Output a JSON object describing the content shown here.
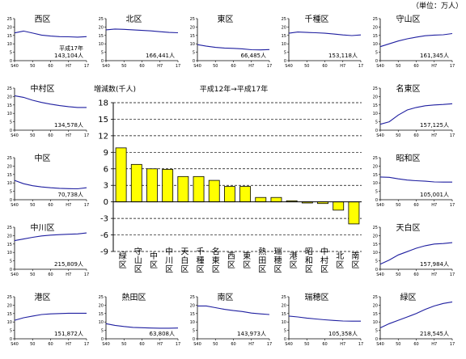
{
  "unit_label": "（単位：万人）",
  "main": {
    "title": "平成12年→平成17年",
    "ylabel": "増減数(千人)",
    "bar_color": "#ffff00",
    "bar_stroke": "#000000",
    "grid_style": "dashed"
  },
  "mini_axis": {
    "yticks": [
      "25",
      "20",
      "15",
      "10",
      "5",
      "0"
    ],
    "xticks": [
      "S40",
      "50",
      "60",
      "H7",
      "17"
    ]
  },
  "chart_data": [
    {
      "type": "bar",
      "title": "平成12年→平成17年",
      "ylabel": "増減数(千人)",
      "categories": [
        "緑区",
        "守山区",
        "中区",
        "中川区",
        "天白区",
        "千種区",
        "名東区",
        "西区",
        "東区",
        "熱田区",
        "瑞穂区",
        "港区",
        "昭和区",
        "中村区",
        "北区",
        "南区"
      ],
      "values": [
        9.8,
        6.8,
        6.0,
        5.9,
        4.6,
        4.6,
        3.9,
        2.8,
        2.8,
        0.8,
        0.8,
        0.2,
        -0.2,
        -0.3,
        -1.5,
        -4.0
      ],
      "ylim": [
        -9,
        18
      ],
      "yticks": [
        -9,
        -6,
        -3,
        0,
        3,
        6,
        9,
        12,
        15,
        18
      ],
      "grid": true
    },
    {
      "type": "line",
      "title": "西区",
      "annotation_top": "平成17年",
      "annotation": "143,104人",
      "x": [
        "S40",
        "S45",
        "S50",
        "S55",
        "S60",
        "H2",
        "H7",
        "H12",
        "H17"
      ],
      "values": [
        16.5,
        17.6,
        16.4,
        15.2,
        14.6,
        14.3,
        14.2,
        14.0,
        14.3
      ],
      "ylim": [
        0,
        25
      ]
    },
    {
      "type": "line",
      "title": "北区",
      "annotation": "166,441人",
      "x": [
        "S40",
        "S45",
        "S50",
        "S55",
        "S60",
        "H2",
        "H7",
        "H12",
        "H17"
      ],
      "values": [
        18.3,
        18.8,
        18.6,
        18.3,
        18.0,
        17.7,
        17.2,
        16.8,
        16.6
      ],
      "ylim": [
        0,
        25
      ]
    },
    {
      "type": "line",
      "title": "東区",
      "annotation": "66,485人",
      "x": [
        "S40",
        "S45",
        "S50",
        "S55",
        "S60",
        "H2",
        "H7",
        "H12",
        "H17"
      ],
      "values": [
        9.5,
        8.6,
        7.9,
        7.5,
        7.3,
        7.0,
        6.5,
        6.4,
        6.6
      ],
      "ylim": [
        0,
        25
      ]
    },
    {
      "type": "line",
      "title": "千種区",
      "annotation": "153,118人",
      "x": [
        "S40",
        "S45",
        "S50",
        "S55",
        "S60",
        "H2",
        "H7",
        "H12",
        "H17"
      ],
      "values": [
        16.3,
        17.0,
        16.8,
        16.6,
        16.3,
        15.8,
        15.3,
        14.9,
        15.3
      ],
      "ylim": [
        0,
        25
      ]
    },
    {
      "type": "line",
      "title": "守山区",
      "annotation": "161,345人",
      "x": [
        "S40",
        "S45",
        "S50",
        "S55",
        "S60",
        "H2",
        "H7",
        "H12",
        "H17"
      ],
      "values": [
        8.3,
        10.0,
        11.7,
        13.0,
        14.0,
        14.8,
        15.2,
        15.4,
        16.1
      ],
      "ylim": [
        0,
        25
      ]
    },
    {
      "type": "line",
      "title": "中村区",
      "annotation": "134,578人",
      "x": [
        "S40",
        "S45",
        "S50",
        "S55",
        "S60",
        "H2",
        "H7",
        "H12",
        "H17"
      ],
      "values": [
        20.5,
        19.5,
        17.8,
        16.5,
        15.5,
        14.6,
        14.0,
        13.5,
        13.5
      ],
      "ylim": [
        0,
        25
      ]
    },
    {
      "type": "line",
      "title": "名東区",
      "annotation": "157,125人",
      "x": [
        "S40",
        "S45",
        "S50",
        "S55",
        "S60",
        "H2",
        "H7",
        "H12",
        "H17"
      ],
      "values": [
        3.5,
        5.0,
        9.0,
        12.0,
        13.5,
        14.5,
        15.0,
        15.3,
        15.7
      ],
      "ylim": [
        0,
        25
      ]
    },
    {
      "type": "line",
      "title": "中区",
      "annotation": "70,738人",
      "x": [
        "S40",
        "S45",
        "S50",
        "S55",
        "S60",
        "H2",
        "H7",
        "H12",
        "H17"
      ],
      "values": [
        11.5,
        9.5,
        8.3,
        7.6,
        7.1,
        6.8,
        6.6,
        6.5,
        7.1
      ],
      "ylim": [
        0,
        25
      ]
    },
    {
      "type": "line",
      "title": "昭和区",
      "annotation": "105,001人",
      "x": [
        "S40",
        "S45",
        "S50",
        "S55",
        "S60",
        "H2",
        "H7",
        "H12",
        "H17"
      ],
      "values": [
        13.5,
        13.3,
        12.4,
        11.7,
        11.3,
        11.0,
        10.6,
        10.5,
        10.5
      ],
      "ylim": [
        0,
        25
      ]
    },
    {
      "type": "line",
      "title": "中川区",
      "annotation": "215,809人",
      "x": [
        "S40",
        "S45",
        "S50",
        "S55",
        "S60",
        "H2",
        "H7",
        "H12",
        "H17"
      ],
      "values": [
        17.0,
        18.0,
        19.0,
        19.8,
        20.3,
        20.6,
        20.8,
        21.0,
        21.6
      ],
      "ylim": [
        0,
        25
      ]
    },
    {
      "type": "line",
      "title": "天白区",
      "annotation": "157,984人",
      "x": [
        "S40",
        "S45",
        "S50",
        "S55",
        "S60",
        "H2",
        "H7",
        "H12",
        "H17"
      ],
      "values": [
        3.0,
        5.5,
        8.5,
        10.5,
        12.5,
        14.0,
        15.0,
        15.3,
        15.8
      ],
      "ylim": [
        0,
        25
      ]
    },
    {
      "type": "line",
      "title": "港区",
      "annotation": "151,872人",
      "x": [
        "S40",
        "S45",
        "S50",
        "S55",
        "S60",
        "H2",
        "H7",
        "H12",
        "H17"
      ],
      "values": [
        11.0,
        12.5,
        13.5,
        14.4,
        14.8,
        15.0,
        15.2,
        15.2,
        15.2
      ],
      "ylim": [
        0,
        25
      ]
    },
    {
      "type": "line",
      "title": "熱田区",
      "annotation": "63,808人",
      "x": [
        "S40",
        "S45",
        "S50",
        "S55",
        "S60",
        "H2",
        "H7",
        "H12",
        "H17"
      ],
      "values": [
        9.0,
        8.0,
        7.3,
        6.8,
        6.6,
        6.4,
        6.3,
        6.3,
        6.4
      ],
      "ylim": [
        0,
        25
      ]
    },
    {
      "type": "line",
      "title": "南区",
      "annotation": "143,973人",
      "x": [
        "S40",
        "S45",
        "S50",
        "S55",
        "S60",
        "H2",
        "H7",
        "H12",
        "H17"
      ],
      "values": [
        19.5,
        19.5,
        18.5,
        17.5,
        16.8,
        16.2,
        15.3,
        14.8,
        14.4
      ],
      "ylim": [
        0,
        25
      ]
    },
    {
      "type": "line",
      "title": "瑞穂区",
      "annotation": "105,358人",
      "x": [
        "S40",
        "S45",
        "S50",
        "S55",
        "S60",
        "H2",
        "H7",
        "H12",
        "H17"
      ],
      "values": [
        13.5,
        13.0,
        12.3,
        11.8,
        11.3,
        10.9,
        10.6,
        10.5,
        10.5
      ],
      "ylim": [
        0,
        25
      ]
    },
    {
      "type": "line",
      "title": "緑区",
      "annotation": "218,545人",
      "x": [
        "S40",
        "S45",
        "S50",
        "S55",
        "S60",
        "H2",
        "H7",
        "H12",
        "H17"
      ],
      "values": [
        6.5,
        9.0,
        11.0,
        13.0,
        15.0,
        17.5,
        19.5,
        21.0,
        21.9
      ],
      "ylim": [
        0,
        25
      ]
    }
  ]
}
